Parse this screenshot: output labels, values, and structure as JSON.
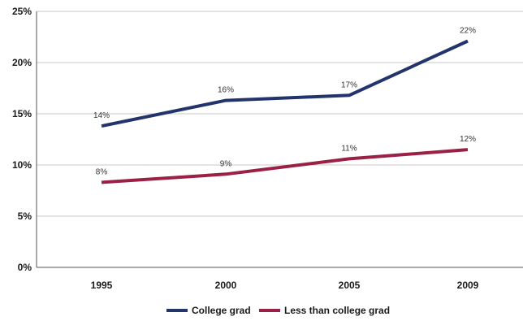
{
  "chart_data": {
    "type": "line",
    "categories": [
      "1995",
      "2000",
      "2005",
      "2009"
    ],
    "series": [
      {
        "name": "College grad",
        "values": [
          14,
          16,
          17,
          22
        ],
        "labels": [
          "14%",
          "16%",
          "17%",
          "22%"
        ],
        "color": "#22346b"
      },
      {
        "name": "Less than college grad",
        "values": [
          8,
          9,
          11,
          12
        ],
        "labels": [
          "8%",
          "9%",
          "11%",
          "12%"
        ],
        "color": "#9b2045"
      }
    ],
    "plotted_values": [
      [
        13.8,
        16.3,
        16.8,
        22.1
      ],
      [
        8.3,
        9.1,
        10.6,
        11.5
      ]
    ],
    "yticks": [
      "0%",
      "5%",
      "10%",
      "15%",
      "20%",
      "25%"
    ],
    "ytick_values": [
      0,
      5,
      10,
      15,
      20,
      25
    ],
    "ylim": [
      0,
      25
    ],
    "grid": true,
    "legend_position": "bottom"
  }
}
